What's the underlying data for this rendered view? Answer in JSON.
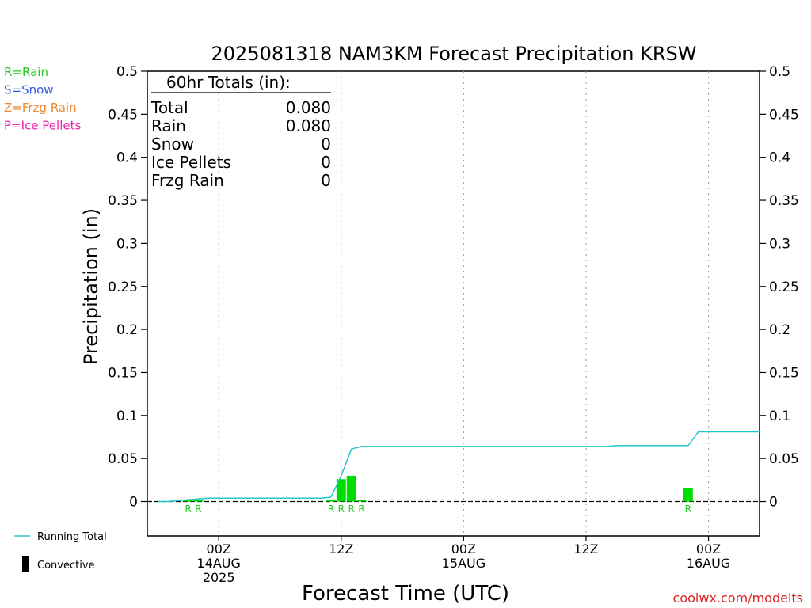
{
  "chart_data": {
    "type": "bar",
    "title": "2025081318 NAM3KM Forecast Precipitation KRSW",
    "xlabel": "Forecast Time (UTC)",
    "ylabel": "Precipitation (in)",
    "ylim": [
      -0.04,
      0.5
    ],
    "yticks": [
      0,
      0.05,
      0.1,
      0.15,
      0.2,
      0.25,
      0.3,
      0.35,
      0.4,
      0.45,
      0.5
    ],
    "ytick_labels": [
      "0",
      "0.05",
      "0.1",
      "0.15",
      "0.2",
      "0.25",
      "0.3",
      "0.35",
      "0.4",
      "0.45",
      "0.5"
    ],
    "x_unit": "forecast hour",
    "xlim": [
      -1,
      59
    ],
    "xticks": [
      {
        "hour": 6,
        "line1": "00Z",
        "line2": "14AUG",
        "line3": "2025"
      },
      {
        "hour": 18,
        "line1": "12Z",
        "line2": "",
        "line3": ""
      },
      {
        "hour": 30,
        "line1": "00Z",
        "line2": "15AUG",
        "line3": ""
      },
      {
        "hour": 42,
        "line1": "12Z",
        "line2": "",
        "line3": ""
      },
      {
        "hour": 54,
        "line1": "00Z",
        "line2": "16AUG",
        "line3": ""
      }
    ],
    "grid": "vertical dotted at each tick",
    "series": [
      {
        "name": "Running Total",
        "type": "line",
        "color": "#22c7c7",
        "x": [
          0,
          1,
          2,
          3,
          4,
          5,
          6,
          7,
          8,
          9,
          10,
          11,
          12,
          13,
          14,
          15,
          16,
          17,
          18,
          19,
          20,
          21,
          22,
          23,
          24,
          25,
          26,
          27,
          28,
          29,
          30,
          31,
          32,
          33,
          34,
          35,
          36,
          37,
          38,
          39,
          40,
          41,
          42,
          43,
          44,
          45,
          46,
          47,
          48,
          49,
          50,
          51,
          52,
          53,
          54,
          55,
          56,
          57,
          58,
          59
        ],
        "values": [
          0,
          0,
          0.001,
          0.002,
          0.003,
          0.004,
          0.004,
          0.004,
          0.004,
          0.004,
          0.004,
          0.004,
          0.004,
          0.004,
          0.004,
          0.004,
          0.004,
          0.005,
          0.03,
          0.061,
          0.064,
          0.064,
          0.064,
          0.064,
          0.064,
          0.064,
          0.064,
          0.064,
          0.064,
          0.064,
          0.064,
          0.064,
          0.064,
          0.064,
          0.064,
          0.064,
          0.064,
          0.064,
          0.064,
          0.064,
          0.064,
          0.064,
          0.064,
          0.064,
          0.064,
          0.065,
          0.065,
          0.065,
          0.065,
          0.065,
          0.065,
          0.065,
          0.065,
          0.081,
          0.081,
          0.081,
          0.081,
          0.081,
          0.081,
          0.081
        ]
      },
      {
        "name": "Hourly Precipitation",
        "type": "bar",
        "color": "#00dd00",
        "x": [
          3,
          4,
          17,
          18,
          19,
          20,
          52
        ],
        "values": [
          0.001,
          0.001,
          0.001,
          0.026,
          0.03,
          0.002,
          0.016
        ]
      },
      {
        "name": "Convective",
        "type": "bar",
        "color": "#000000",
        "x": [],
        "values": []
      }
    ],
    "ptype_markers": [
      {
        "hour": 3,
        "label": "R"
      },
      {
        "hour": 4,
        "label": "R"
      },
      {
        "hour": 17,
        "label": "R"
      },
      {
        "hour": 18,
        "label": "R"
      },
      {
        "hour": 19,
        "label": "R"
      },
      {
        "hour": 20,
        "label": "R"
      },
      {
        "hour": 52,
        "label": "R"
      }
    ]
  },
  "totals_box": {
    "header": "60hr Totals (in):",
    "rows": [
      {
        "label": "Total",
        "value": "0.080"
      },
      {
        "label": "Rain",
        "value": "0.080"
      },
      {
        "label": "Snow",
        "value": "0"
      },
      {
        "label": "Ice Pellets",
        "value": "0"
      },
      {
        "label": "Frzg Rain",
        "value": "0"
      }
    ]
  },
  "ptype_legend": [
    {
      "text": "R=Rain",
      "color": "#22cc22"
    },
    {
      "text": "S=Snow",
      "color": "#3355dd"
    },
    {
      "text": "Z=Frzg Rain",
      "color": "#ee8833"
    },
    {
      "text": "P=Ice Pellets",
      "color": "#ee22aa"
    }
  ],
  "bottom_legend": {
    "running_total": "Running Total",
    "convective": "Convective"
  },
  "watermark": "coolwx.com/modelts",
  "colors": {
    "watermark": "#dd2222",
    "axis": "#000000",
    "grid": "#999999"
  }
}
